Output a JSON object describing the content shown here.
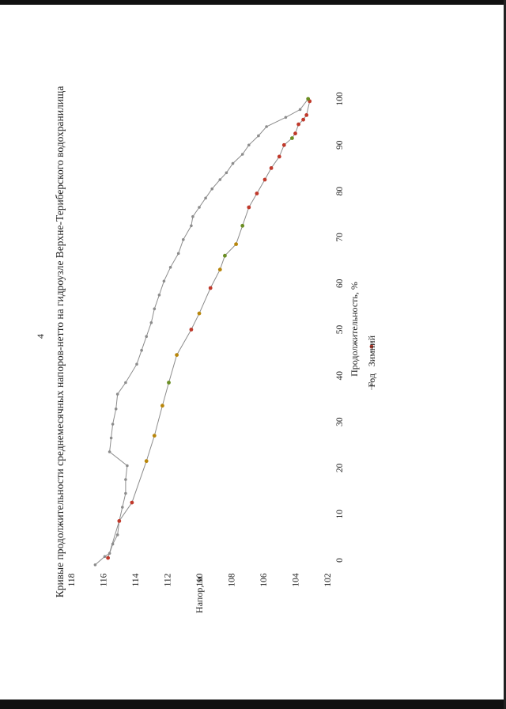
{
  "page": {
    "number": "4"
  },
  "chart_data": {
    "type": "line",
    "title": "Кривые продолжительности среднемесячных напоров-нетто на гидроузле Верхне-Териберского водохранилища",
    "xlabel": "Продолжительность, %",
    "ylabel": "Напор, м",
    "xlim": [
      0,
      100
    ],
    "ylim": [
      102,
      118
    ],
    "xticks": [
      "0",
      "10",
      "20",
      "30",
      "40",
      "50",
      "60",
      "70",
      "80",
      "90",
      "100"
    ],
    "yticks": [
      "102",
      "104",
      "106",
      "108",
      "110",
      "112",
      "114",
      "116",
      "118"
    ],
    "grid": false,
    "legend_position": "bottom",
    "series": [
      {
        "name": "Год",
        "color": "#8c8c8c",
        "marker_color": "#8c8c8c",
        "points": [
          [
            -1,
            116.5
          ],
          [
            0.8,
            115.9
          ],
          [
            1.5,
            115.6
          ],
          [
            3.5,
            115.4
          ],
          [
            5.5,
            115.1
          ],
          [
            8.5,
            115
          ],
          [
            11.5,
            114.8
          ],
          [
            14.5,
            114.6
          ],
          [
            17.5,
            114.6
          ],
          [
            20.5,
            114.5
          ],
          [
            23.5,
            115.6
          ],
          [
            26.5,
            115.5
          ],
          [
            29.5,
            115.4
          ],
          [
            32.8,
            115.2
          ],
          [
            36,
            115.1
          ],
          [
            38.5,
            114.6
          ],
          [
            42.5,
            113.9
          ],
          [
            45.5,
            113.6
          ],
          [
            48.5,
            113.3
          ],
          [
            51.5,
            113
          ],
          [
            54.5,
            112.8
          ],
          [
            57.5,
            112.5
          ],
          [
            60.5,
            112.2
          ],
          [
            63.5,
            111.8
          ],
          [
            66.5,
            111.3
          ],
          [
            69.5,
            111
          ],
          [
            72.5,
            110.5
          ],
          [
            74.5,
            110.4
          ],
          [
            76.5,
            110
          ],
          [
            78.5,
            109.6
          ],
          [
            80.5,
            109.2
          ],
          [
            82.5,
            108.7
          ],
          [
            84,
            108.3
          ],
          [
            86,
            107.9
          ],
          [
            88,
            107.3
          ],
          [
            90,
            106.9
          ],
          [
            92,
            106.3
          ],
          [
            94,
            105.8
          ],
          [
            96,
            104.6
          ],
          [
            97.7,
            103.7
          ],
          [
            100,
            103.2
          ]
        ]
      },
      {
        "name": "Зимний",
        "color": "#8c8c8c",
        "marker_color": "#c0392b",
        "marker_colors": [
          "#c0392b",
          "#c0392b",
          "#c0392b",
          "#b8860b",
          "#b8860b",
          "#b8860b",
          "#6b8e23",
          "#b8860b",
          "#c0392b",
          "#b8860b",
          "#c0392b",
          "#b8860b",
          "#6b8e23",
          "#b8860b",
          "#6b8e23",
          "#c0392b",
          "#c0392b",
          "#c0392b",
          "#c0392b",
          "#c0392b",
          "#c0392b",
          "#6b8e23",
          "#c0392b",
          "#c0392b",
          "#c0392b",
          "#c0392b",
          "#c0392b",
          "#6b8e23"
        ],
        "points": [
          [
            0.5,
            115.7
          ],
          [
            8.5,
            115
          ],
          [
            12.5,
            114.2
          ],
          [
            21.5,
            113.3
          ],
          [
            27,
            112.8
          ],
          [
            33.5,
            112.3
          ],
          [
            38.5,
            111.9
          ],
          [
            44.5,
            111.4
          ],
          [
            50,
            110.5
          ],
          [
            53.5,
            110
          ],
          [
            59,
            109.3
          ],
          [
            63,
            108.7
          ],
          [
            66,
            108.4
          ],
          [
            68.5,
            107.7
          ],
          [
            72.5,
            107.3
          ],
          [
            76.5,
            106.9
          ],
          [
            79.5,
            106.4
          ],
          [
            82.5,
            105.9
          ],
          [
            85,
            105.5
          ],
          [
            87.5,
            105
          ],
          [
            90,
            104.7
          ],
          [
            91.5,
            104.2
          ],
          [
            92.5,
            104
          ],
          [
            94.5,
            103.8
          ],
          [
            95.5,
            103.5
          ],
          [
            96.5,
            103.3
          ],
          [
            99.5,
            103.1
          ],
          [
            100,
            103.2
          ]
        ]
      }
    ]
  }
}
